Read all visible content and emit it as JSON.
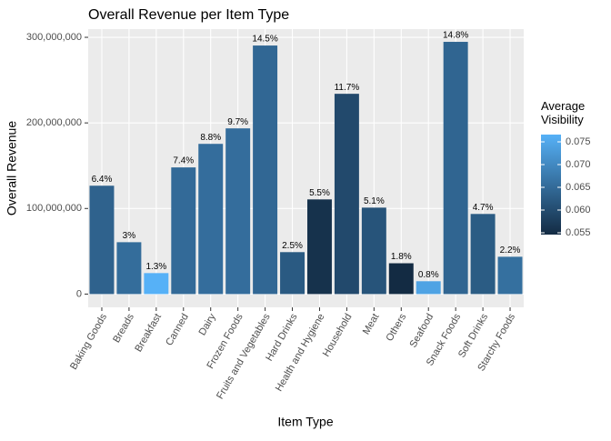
{
  "chart_data": {
    "type": "bar",
    "title": "Overall Revenue per Item Type",
    "x_label": "Item Type",
    "y_label": "Overall Revenue",
    "categories": [
      "Baking Goods",
      "Breads",
      "Breakfast",
      "Canned",
      "Dairy",
      "Frozen Foods",
      "Fruits and Vegetables",
      "Hard Drinks",
      "Health and Hygiene",
      "Household",
      "Meat",
      "Others",
      "Seafood",
      "Snack Foods",
      "Soft Drinks",
      "Starchy Foods"
    ],
    "values": [
      126600000,
      60600000,
      24500000,
      148000000,
      175500000,
      193600000,
      290400000,
      49000000,
      110600000,
      234000000,
      101000000,
      36000000,
      15000000,
      294700000,
      93600000,
      43600000
    ],
    "share_labels": [
      "6.4%",
      "3%",
      "1.3%",
      "7.4%",
      "8.8%",
      "9.7%",
      "14.5%",
      "2.5%",
      "5.5%",
      "11.7%",
      "5.1%",
      "1.8%",
      "0.8%",
      "14.8%",
      "4.7%",
      "2.2%"
    ],
    "visibility": [
      0.0637,
      0.0654,
      0.0766,
      0.065,
      0.0655,
      0.0655,
      0.0645,
      0.0623,
      0.0557,
      0.0596,
      0.0613,
      0.0546,
      0.0743,
      0.0641,
      0.0626,
      0.0659
    ],
    "ylim": [
      -15500000,
      309600000
    ],
    "yticks": [
      0,
      {
        "value": 100000000,
        "label": "100,000,000"
      },
      {
        "value": 200000000,
        "label": "200,000,000"
      },
      {
        "value": 300000000,
        "label": "300,000,000"
      }
    ],
    "legend_title": "Average\nVisibility",
    "color_low": "#132B43",
    "color_high": "#56B1F7",
    "colorlim": [
      0.0546,
      0.0766
    ],
    "colorticks": [
      0.055,
      0.06,
      0.065,
      0.07,
      0.075
    ],
    "colortick_labels": [
      "0.055",
      "0.060",
      "0.065",
      "0.070",
      "0.075"
    ],
    "grid": true
  }
}
